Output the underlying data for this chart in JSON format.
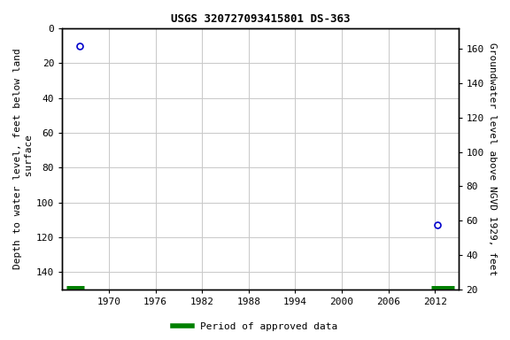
{
  "title": "USGS 320727093415801 DS-363",
  "point1_year": 1966.3,
  "point1_depth": 10,
  "point2_year": 2012.3,
  "point2_depth": 113,
  "bar1_year_start": 1964.5,
  "bar1_year_end": 1966.8,
  "bar2_year_start": 2011.5,
  "bar2_year_end": 2014.5,
  "xlim_left": 1964,
  "xlim_right": 2015,
  "ylim_top": 0,
  "ylim_bottom": 150,
  "left_yticks": [
    0,
    20,
    40,
    60,
    80,
    100,
    120,
    140
  ],
  "xticks": [
    1970,
    1976,
    1982,
    1988,
    1994,
    2000,
    2006,
    2012
  ],
  "ylabel_left": "Depth to water level, feet below land\n surface",
  "ylabel_right": "Groundwater level above NGVD 1929, feet",
  "legend_label": "Period of approved data",
  "point_color": "#0000cc",
  "bar_color": "#008000",
  "background_color": "#ffffff",
  "grid_color": "#c8c8c8",
  "land_surface_elevation": 172,
  "right_yticks": [
    20,
    40,
    60,
    80,
    100,
    120,
    140,
    160
  ],
  "title_fontsize": 9,
  "tick_fontsize": 8,
  "label_fontsize": 8
}
